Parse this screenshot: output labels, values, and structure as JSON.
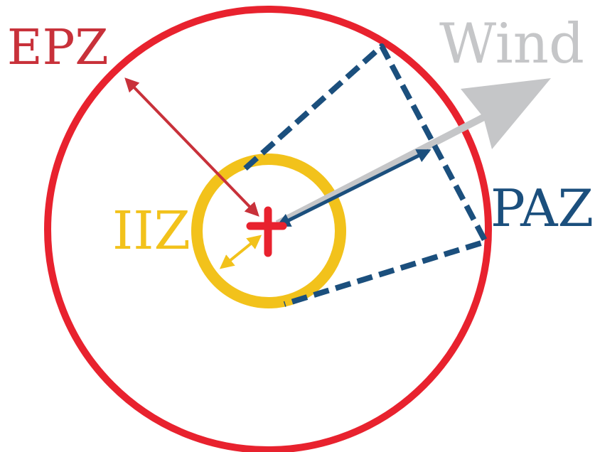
{
  "labels": {
    "epz": "EPZ",
    "wind": "Wind",
    "iiz": "IIZ",
    "paz": "PAZ"
  }
}
